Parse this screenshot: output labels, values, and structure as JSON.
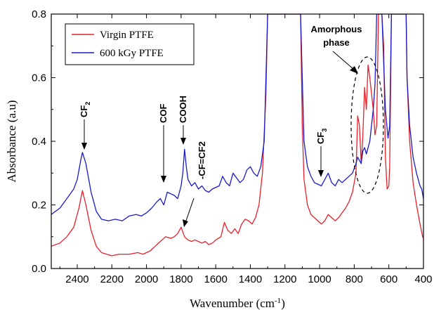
{
  "chart_data": {
    "type": "line",
    "xlabel": "Wavenumber (cm",
    "xlabel_sup": "-1",
    "xlabel_tail": ")",
    "ylabel": "Absorbance (a.u)",
    "xlim": [
      2550,
      400
    ],
    "ylim": [
      0,
      0.8
    ],
    "x_reversed": true,
    "x_ticks": [
      2400,
      2200,
      2000,
      1800,
      1600,
      1400,
      1200,
      1000,
      800,
      600,
      400
    ],
    "y_ticks": [
      0.0,
      0.2,
      0.4,
      0.6,
      0.8
    ],
    "y_tick_labels": [
      "0.0",
      "0.2",
      "0.4",
      "0.6",
      "0.8"
    ],
    "legend_position": "top-left",
    "series": [
      {
        "name": "Virgin PTFE",
        "color": "#e8202a",
        "points": [
          [
            2550,
            0.07
          ],
          [
            2500,
            0.08
          ],
          [
            2460,
            0.1
          ],
          [
            2420,
            0.13
          ],
          [
            2390,
            0.19
          ],
          [
            2370,
            0.245
          ],
          [
            2350,
            0.2
          ],
          [
            2320,
            0.12
          ],
          [
            2290,
            0.07
          ],
          [
            2260,
            0.05
          ],
          [
            2200,
            0.04
          ],
          [
            2160,
            0.045
          ],
          [
            2100,
            0.045
          ],
          [
            2050,
            0.05
          ],
          [
            2020,
            0.045
          ],
          [
            1980,
            0.055
          ],
          [
            1950,
            0.07
          ],
          [
            1920,
            0.085
          ],
          [
            1890,
            0.1
          ],
          [
            1860,
            0.095
          ],
          [
            1840,
            0.1
          ],
          [
            1820,
            0.11
          ],
          [
            1800,
            0.13
          ],
          [
            1780,
            0.1
          ],
          [
            1760,
            0.09
          ],
          [
            1740,
            0.085
          ],
          [
            1720,
            0.09
          ],
          [
            1700,
            0.085
          ],
          [
            1680,
            0.08
          ],
          [
            1660,
            0.085
          ],
          [
            1640,
            0.075
          ],
          [
            1620,
            0.08
          ],
          [
            1600,
            0.09
          ],
          [
            1570,
            0.1
          ],
          [
            1550,
            0.145
          ],
          [
            1530,
            0.12
          ],
          [
            1510,
            0.11
          ],
          [
            1490,
            0.125
          ],
          [
            1470,
            0.11
          ],
          [
            1450,
            0.14
          ],
          [
            1430,
            0.155
          ],
          [
            1410,
            0.15
          ],
          [
            1390,
            0.14
          ],
          [
            1370,
            0.16
          ],
          [
            1350,
            0.2
          ],
          [
            1330,
            0.3
          ],
          [
            1310,
            0.55
          ],
          [
            1300,
            0.8
          ],
          [
            1110,
            0.8
          ],
          [
            1100,
            0.45
          ],
          [
            1090,
            0.28
          ],
          [
            1070,
            0.2
          ],
          [
            1050,
            0.17
          ],
          [
            1030,
            0.16
          ],
          [
            1010,
            0.15
          ],
          [
            990,
            0.14
          ],
          [
            970,
            0.15
          ],
          [
            950,
            0.17
          ],
          [
            930,
            0.16
          ],
          [
            910,
            0.15
          ],
          [
            890,
            0.16
          ],
          [
            870,
            0.175
          ],
          [
            850,
            0.19
          ],
          [
            830,
            0.21
          ],
          [
            810,
            0.24
          ],
          [
            790,
            0.3
          ],
          [
            780,
            0.48
          ],
          [
            770,
            0.45
          ],
          [
            760,
            0.33
          ],
          [
            750,
            0.42
          ],
          [
            740,
            0.57
          ],
          [
            730,
            0.5
          ],
          [
            720,
            0.64
          ],
          [
            710,
            0.6
          ],
          [
            700,
            0.55
          ],
          [
            690,
            0.5
          ],
          [
            680,
            0.42
          ],
          [
            670,
            0.45
          ],
          [
            660,
            0.8
          ],
          [
            640,
            0.8
          ],
          [
            630,
            0.7
          ],
          [
            620,
            0.35
          ],
          [
            610,
            0.25
          ],
          [
            600,
            0.26
          ],
          [
            595,
            0.32
          ],
          [
            585,
            0.8
          ],
          [
            500,
            0.8
          ],
          [
            495,
            0.6
          ],
          [
            480,
            0.4
          ],
          [
            460,
            0.27
          ],
          [
            440,
            0.2
          ],
          [
            420,
            0.14
          ],
          [
            405,
            0.1
          ],
          [
            400,
            0.095
          ]
        ]
      },
      {
        "name": "600 kGy PTFE",
        "color": "#1a1ac8",
        "points": [
          [
            2550,
            0.17
          ],
          [
            2500,
            0.19
          ],
          [
            2460,
            0.22
          ],
          [
            2420,
            0.25
          ],
          [
            2400,
            0.28
          ],
          [
            2380,
            0.34
          ],
          [
            2370,
            0.365
          ],
          [
            2350,
            0.33
          ],
          [
            2320,
            0.24
          ],
          [
            2290,
            0.18
          ],
          [
            2260,
            0.155
          ],
          [
            2220,
            0.15
          ],
          [
            2180,
            0.155
          ],
          [
            2140,
            0.15
          ],
          [
            2100,
            0.165
          ],
          [
            2060,
            0.17
          ],
          [
            2030,
            0.165
          ],
          [
            2000,
            0.175
          ],
          [
            1970,
            0.19
          ],
          [
            1940,
            0.21
          ],
          [
            1920,
            0.22
          ],
          [
            1900,
            0.2
          ],
          [
            1880,
            0.24
          ],
          [
            1860,
            0.235
          ],
          [
            1840,
            0.23
          ],
          [
            1820,
            0.22
          ],
          [
            1800,
            0.26
          ],
          [
            1790,
            0.3
          ],
          [
            1780,
            0.375
          ],
          [
            1770,
            0.32
          ],
          [
            1760,
            0.28
          ],
          [
            1740,
            0.26
          ],
          [
            1720,
            0.27
          ],
          [
            1700,
            0.25
          ],
          [
            1680,
            0.26
          ],
          [
            1660,
            0.245
          ],
          [
            1640,
            0.24
          ],
          [
            1620,
            0.25
          ],
          [
            1600,
            0.255
          ],
          [
            1580,
            0.26
          ],
          [
            1560,
            0.29
          ],
          [
            1540,
            0.27
          ],
          [
            1520,
            0.26
          ],
          [
            1500,
            0.3
          ],
          [
            1480,
            0.285
          ],
          [
            1460,
            0.27
          ],
          [
            1440,
            0.28
          ],
          [
            1420,
            0.31
          ],
          [
            1400,
            0.32
          ],
          [
            1380,
            0.3
          ],
          [
            1360,
            0.29
          ],
          [
            1340,
            0.32
          ],
          [
            1320,
            0.4
          ],
          [
            1310,
            0.6
          ],
          [
            1300,
            0.8
          ],
          [
            1110,
            0.8
          ],
          [
            1100,
            0.6
          ],
          [
            1090,
            0.4
          ],
          [
            1070,
            0.32
          ],
          [
            1050,
            0.29
          ],
          [
            1030,
            0.27
          ],
          [
            1010,
            0.265
          ],
          [
            990,
            0.26
          ],
          [
            970,
            0.28
          ],
          [
            950,
            0.3
          ],
          [
            930,
            0.27
          ],
          [
            910,
            0.26
          ],
          [
            890,
            0.28
          ],
          [
            870,
            0.27
          ],
          [
            850,
            0.28
          ],
          [
            830,
            0.29
          ],
          [
            810,
            0.3
          ],
          [
            790,
            0.33
          ],
          [
            780,
            0.35
          ],
          [
            770,
            0.34
          ],
          [
            760,
            0.33
          ],
          [
            750,
            0.37
          ],
          [
            740,
            0.38
          ],
          [
            730,
            0.36
          ],
          [
            720,
            0.38
          ],
          [
            710,
            0.4
          ],
          [
            700,
            0.45
          ],
          [
            690,
            0.5
          ],
          [
            680,
            0.58
          ],
          [
            670,
            0.8
          ],
          [
            640,
            0.8
          ],
          [
            620,
            0.5
          ],
          [
            605,
            0.41
          ],
          [
            595,
            0.45
          ],
          [
            585,
            0.8
          ],
          [
            500,
            0.8
          ],
          [
            495,
            0.6
          ],
          [
            480,
            0.45
          ],
          [
            460,
            0.35
          ],
          [
            440,
            0.3
          ],
          [
            420,
            0.26
          ],
          [
            410,
            0.25
          ],
          [
            400,
            0.22
          ]
        ]
      }
    ],
    "annotations": {
      "cf2_main": "CF",
      "cf2_sub": "2",
      "cof": "COF",
      "cooh": "COOH",
      "cfcf2": "-CF=CF2",
      "cf3_main": "CF",
      "cf3_sub": "3",
      "amorphous_line1": "Amorphous",
      "amorphous_line2": "phase"
    }
  }
}
